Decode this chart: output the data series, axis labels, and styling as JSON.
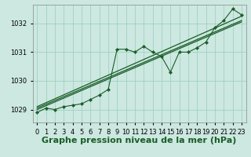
{
  "background_color": "#cce8e0",
  "grid_color": "#99ccbb",
  "line_color": "#1a5c28",
  "marker_color": "#1a5c28",
  "xlabel": "Graphe pression niveau de la mer (hPa)",
  "xlabel_fontsize": 8,
  "tick_fontsize": 6,
  "xlim": [
    -0.5,
    23.5
  ],
  "ylim": [
    1028.55,
    1032.65
  ],
  "yticks": [
    1029,
    1030,
    1031,
    1032
  ],
  "xticks": [
    0,
    1,
    2,
    3,
    4,
    5,
    6,
    7,
    8,
    9,
    10,
    11,
    12,
    13,
    14,
    15,
    16,
    17,
    18,
    19,
    20,
    21,
    22,
    23
  ],
  "series1": [
    1028.9,
    1029.05,
    1029.0,
    1029.1,
    1029.15,
    1029.2,
    1029.35,
    1029.5,
    1029.7,
    1031.1,
    1031.1,
    1031.0,
    1031.2,
    1031.0,
    1030.85,
    1030.3,
    1031.0,
    1031.0,
    1031.15,
    1031.35,
    1031.85,
    1032.1,
    1032.5,
    1032.3
  ],
  "series2_pts": [
    [
      0,
      1029.0
    ],
    [
      23,
      1032.05
    ]
  ],
  "series3_pts": [
    [
      0,
      1029.05
    ],
    [
      23,
      1032.1
    ]
  ],
  "series4_pts": [
    [
      0,
      1029.1
    ],
    [
      23,
      1032.25
    ]
  ]
}
